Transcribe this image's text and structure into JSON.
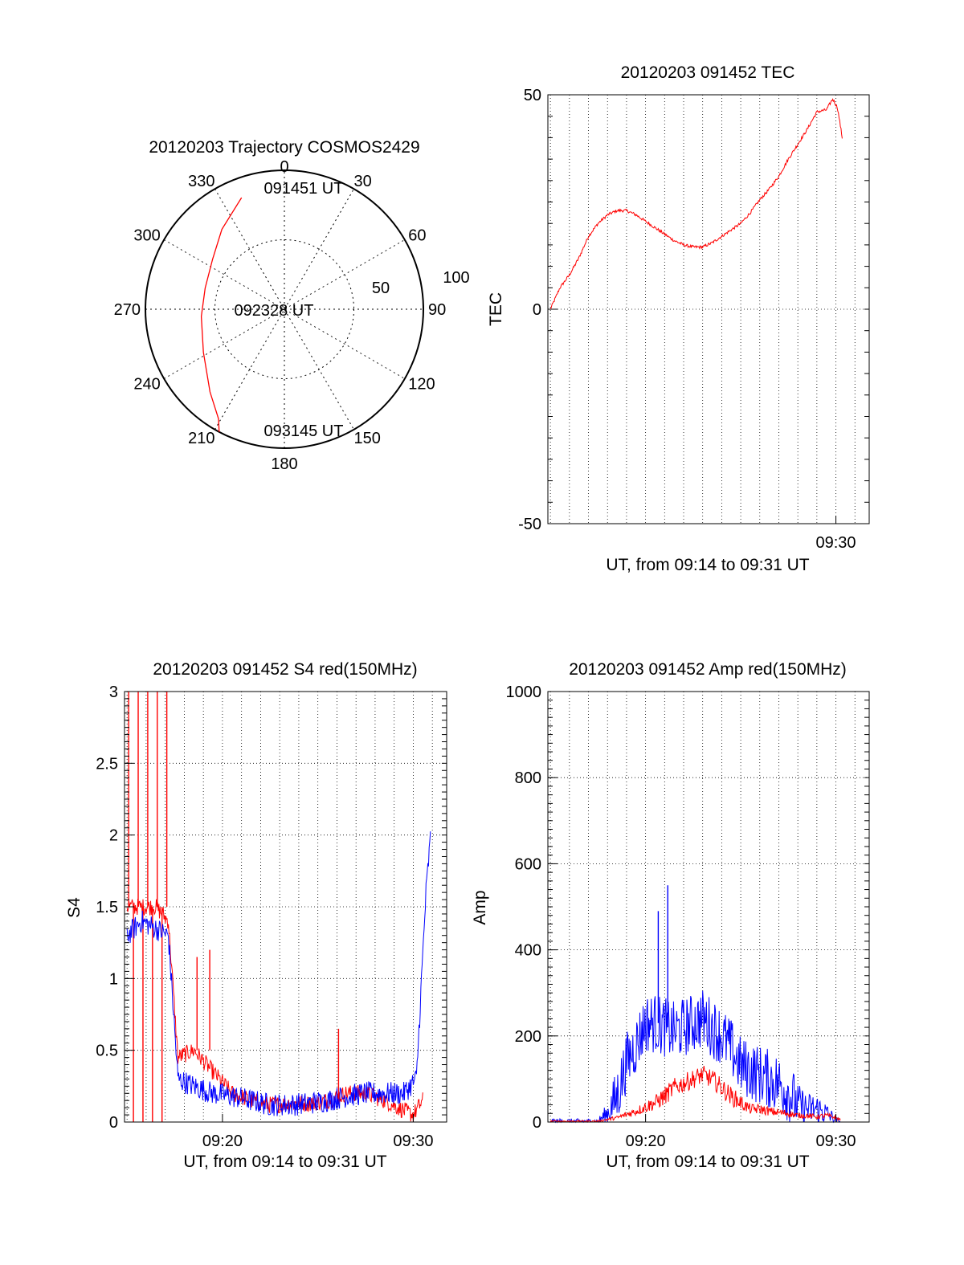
{
  "colors": {
    "red": "#ff0000",
    "blue": "#0000ff",
    "axis": "#000000",
    "grid": "#000000"
  },
  "chart_data": [
    {
      "id": "trajectory",
      "type": "polar",
      "title": "20120203 Trajectory COSMOS2429",
      "azimuth_labels": [
        "0",
        "30",
        "60",
        "90",
        "120",
        "150",
        "180",
        "210",
        "240",
        "270",
        "300",
        "330"
      ],
      "radial_ring_labels": [
        "50",
        "100"
      ],
      "radial_range": [
        0,
        100
      ],
      "annotations": {
        "start": "091451 UT",
        "mid": "092328 UT",
        "end": "093145 UT"
      },
      "track": {
        "series_color": "red",
        "points": [
          {
            "az": 339,
            "r": 86
          },
          {
            "az": 322,
            "r": 73
          },
          {
            "az": 305,
            "r": 63
          },
          {
            "az": 285,
            "r": 59
          },
          {
            "az": 265,
            "r": 60
          },
          {
            "az": 242,
            "r": 66
          },
          {
            "az": 222,
            "r": 80
          },
          {
            "az": 211,
            "r": 92
          },
          {
            "az": 208,
            "r": 100
          }
        ]
      }
    },
    {
      "id": "tec",
      "type": "line",
      "title": "20120203 091452 TEC",
      "xlabel": "UT, from 09:14 to 09:31 UT",
      "ylabel": "TEC",
      "xlim": [
        "09:14:52",
        "09:31:45"
      ],
      "ylim": [
        -50,
        50
      ],
      "yticks": [
        "-50",
        "0",
        "50"
      ],
      "xticks": [
        {
          "t": "09:30:00",
          "label": "09:30"
        }
      ],
      "grid": true,
      "series": [
        {
          "color": "red",
          "noise": 0.35,
          "points": [
            [
              "09:15:00",
              0
            ],
            [
              "09:15:30",
              5
            ],
            [
              "09:16:00",
              8
            ],
            [
              "09:16:30",
              12
            ],
            [
              "09:17:00",
              17
            ],
            [
              "09:17:30",
              20
            ],
            [
              "09:18:00",
              22
            ],
            [
              "09:18:30",
              23
            ],
            [
              "09:19:00",
              23
            ],
            [
              "09:19:30",
              22
            ],
            [
              "09:20:00",
              20.5
            ],
            [
              "09:20:30",
              19
            ],
            [
              "09:21:00",
              17.5
            ],
            [
              "09:21:30",
              16
            ],
            [
              "09:22:00",
              15
            ],
            [
              "09:22:30",
              14.5
            ],
            [
              "09:23:00",
              14.5
            ],
            [
              "09:23:30",
              15.5
            ],
            [
              "09:24:00",
              17
            ],
            [
              "09:24:30",
              18.5
            ],
            [
              "09:25:00",
              20
            ],
            [
              "09:25:30",
              22.5
            ],
            [
              "09:26:00",
              25.5
            ],
            [
              "09:26:30",
              28
            ],
            [
              "09:27:00",
              31
            ],
            [
              "09:27:30",
              35
            ],
            [
              "09:28:00",
              38.5
            ],
            [
              "09:28:30",
              42
            ],
            [
              "09:29:00",
              46
            ],
            [
              "09:29:30",
              46.5
            ],
            [
              "09:29:50",
              49
            ],
            [
              "09:30:05",
              47
            ],
            [
              "09:30:20",
              40
            ]
          ]
        }
      ]
    },
    {
      "id": "s4",
      "type": "line",
      "title": "20120203 091452 S4 red(150MHz)",
      "xlabel": "UT, from 09:14 to 09:31 UT",
      "ylabel": "S4",
      "xlim": [
        "09:14:52",
        "09:31:45"
      ],
      "ylim": [
        0,
        3
      ],
      "yticks": [
        "0",
        "0.5",
        "1",
        "1.5",
        "2",
        "2.5",
        "3"
      ],
      "xticks": [
        {
          "t": "09:20:00",
          "label": "09:20"
        },
        {
          "t": "09:30:00",
          "label": "09:30"
        }
      ],
      "grid": true,
      "series": [
        {
          "color": "red",
          "noise": 0.06,
          "points": [
            [
              "09:15:00",
              1.5
            ],
            [
              "09:15:45",
              1.5
            ],
            [
              "09:16:30",
              1.5
            ],
            [
              "09:17:10",
              1.4
            ],
            [
              "09:17:40",
              0.45
            ],
            [
              "09:18:30",
              0.5
            ],
            [
              "09:19:30",
              0.35
            ],
            [
              "09:20:30",
              0.2
            ],
            [
              "09:21:30",
              0.15
            ],
            [
              "09:22:30",
              0.12
            ],
            [
              "09:23:30",
              0.13
            ],
            [
              "09:24:30",
              0.13
            ],
            [
              "09:25:30",
              0.15
            ],
            [
              "09:26:30",
              0.2
            ],
            [
              "09:27:30",
              0.2
            ],
            [
              "09:28:30",
              0.15
            ],
            [
              "09:29:30",
              0.08
            ],
            [
              "09:30:00",
              0.05
            ],
            [
              "09:30:30",
              0.15
            ]
          ],
          "spikes": [
            [
              "09:15:05",
              3
            ],
            [
              "09:15:20",
              0
            ],
            [
              "09:15:35",
              3
            ],
            [
              "09:15:50",
              0
            ],
            [
              "09:16:05",
              3
            ],
            [
              "09:16:20",
              0
            ],
            [
              "09:16:35",
              3
            ],
            [
              "09:16:50",
              0
            ],
            [
              "09:17:05",
              3
            ],
            [
              "09:18:40",
              1.15
            ],
            [
              "09:19:20",
              1.2
            ],
            [
              "09:26:05",
              0.65
            ]
          ]
        },
        {
          "color": "blue",
          "noise": 0.08,
          "points": [
            [
              "09:15:00",
              1.3
            ],
            [
              "09:15:45",
              1.4
            ],
            [
              "09:16:30",
              1.35
            ],
            [
              "09:17:10",
              1.3
            ],
            [
              "09:17:40",
              0.3
            ],
            [
              "09:18:30",
              0.25
            ],
            [
              "09:19:30",
              0.2
            ],
            [
              "09:20:30",
              0.18
            ],
            [
              "09:21:30",
              0.15
            ],
            [
              "09:22:30",
              0.12
            ],
            [
              "09:23:30",
              0.12
            ],
            [
              "09:24:30",
              0.13
            ],
            [
              "09:25:30",
              0.15
            ],
            [
              "09:26:30",
              0.18
            ],
            [
              "09:27:30",
              0.2
            ],
            [
              "09:28:30",
              0.2
            ],
            [
              "09:29:30",
              0.2
            ],
            [
              "09:30:10",
              0.3
            ],
            [
              "09:30:40",
              1.6
            ],
            [
              "09:30:55",
              2.0
            ]
          ]
        }
      ]
    },
    {
      "id": "amp",
      "type": "line",
      "title": "20120203 091452 Amp red(150MHz)",
      "xlabel": "UT, from 09:14 to 09:31 UT",
      "ylabel": "Amp",
      "xlim": [
        "09:14:52",
        "09:31:45"
      ],
      "ylim": [
        0,
        1000
      ],
      "yticks": [
        "0",
        "200",
        "400",
        "600",
        "800",
        "1000"
      ],
      "xticks": [
        {
          "t": "09:20:00",
          "label": "09:20"
        },
        {
          "t": "09:30:00",
          "label": "09:30"
        }
      ],
      "grid": true,
      "series": [
        {
          "color": "blue",
          "noise": 70,
          "points": [
            [
              "09:15:00",
              2
            ],
            [
              "09:17:30",
              2
            ],
            [
              "09:18:00",
              20
            ],
            [
              "09:18:30",
              60
            ],
            [
              "09:19:00",
              140
            ],
            [
              "09:19:30",
              180
            ],
            [
              "09:20:00",
              230
            ],
            [
              "09:20:30",
              230
            ],
            [
              "09:21:00",
              220
            ],
            [
              "09:21:30",
              210
            ],
            [
              "09:22:00",
              220
            ],
            [
              "09:22:30",
              230
            ],
            [
              "09:23:00",
              240
            ],
            [
              "09:23:30",
              220
            ],
            [
              "09:24:00",
              200
            ],
            [
              "09:24:30",
              170
            ],
            [
              "09:25:00",
              130
            ],
            [
              "09:25:30",
              120
            ],
            [
              "09:26:00",
              110
            ],
            [
              "09:26:30",
              100
            ],
            [
              "09:27:00",
              90
            ],
            [
              "09:27:30",
              70
            ],
            [
              "09:28:00",
              40
            ],
            [
              "09:28:30",
              30
            ],
            [
              "09:29:00",
              30
            ],
            [
              "09:29:30",
              20
            ],
            [
              "09:30:00",
              5
            ],
            [
              "09:30:15",
              0
            ]
          ],
          "spikes": [
            [
              "09:21:10",
              550
            ],
            [
              "09:20:40",
              490
            ]
          ]
        },
        {
          "color": "red",
          "noise": 22,
          "points": [
            [
              "09:15:00",
              2
            ],
            [
              "09:17:30",
              2
            ],
            [
              "09:18:30",
              10
            ],
            [
              "09:19:30",
              25
            ],
            [
              "09:20:00",
              35
            ],
            [
              "09:20:30",
              45
            ],
            [
              "09:21:00",
              60
            ],
            [
              "09:21:30",
              80
            ],
            [
              "09:22:00",
              90
            ],
            [
              "09:22:30",
              100
            ],
            [
              "09:23:00",
              110
            ],
            [
              "09:23:30",
              100
            ],
            [
              "09:24:00",
              80
            ],
            [
              "09:24:30",
              60
            ],
            [
              "09:25:00",
              45
            ],
            [
              "09:25:30",
              30
            ],
            [
              "09:26:00",
              30
            ],
            [
              "09:26:30",
              25
            ],
            [
              "09:27:00",
              22
            ],
            [
              "09:27:30",
              20
            ],
            [
              "09:28:00",
              15
            ],
            [
              "09:28:30",
              15
            ],
            [
              "09:29:00",
              12
            ],
            [
              "09:29:30",
              15
            ],
            [
              "09:30:00",
              10
            ],
            [
              "09:30:15",
              5
            ]
          ]
        }
      ]
    }
  ]
}
